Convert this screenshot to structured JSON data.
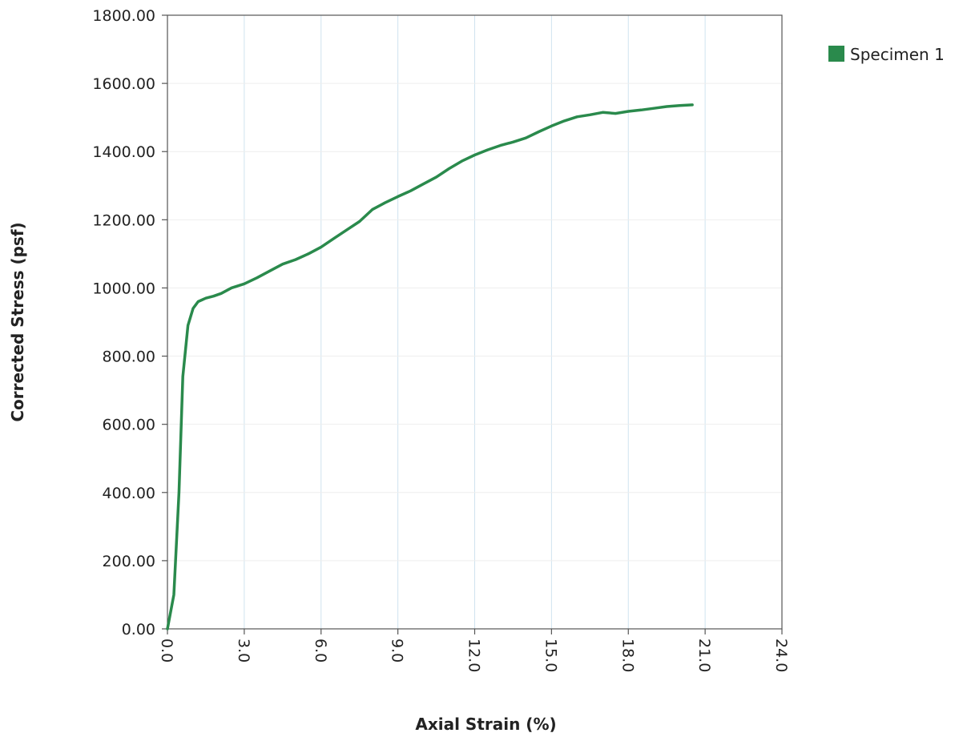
{
  "chart_data": {
    "type": "line",
    "title": "",
    "xlabel": "Axial Strain (%)",
    "ylabel": "Corrected Stress (psf)",
    "xlim": [
      0,
      24
    ],
    "ylim": [
      0,
      1800
    ],
    "xticks": [
      "0.0",
      "3.0",
      "6.0",
      "9.0",
      "12.0",
      "15.0",
      "18.0",
      "21.0",
      "24.0"
    ],
    "yticks": [
      "0.00",
      "200.00",
      "400.00",
      "600.00",
      "800.00",
      "1000.00",
      "1200.00",
      "1400.00",
      "1600.00",
      "1800.00"
    ],
    "grid": true,
    "legend_position": "top-right",
    "series": [
      {
        "name": "Specimen 1",
        "color": "#2a8a4c",
        "x": [
          0.0,
          0.25,
          0.45,
          0.6,
          0.8,
          1.0,
          1.2,
          1.5,
          1.8,
          2.1,
          2.5,
          3.0,
          3.5,
          4.0,
          4.5,
          5.0,
          5.5,
          6.0,
          6.5,
          7.0,
          7.5,
          8.0,
          8.5,
          9.0,
          9.5,
          10.0,
          10.5,
          11.0,
          11.5,
          12.0,
          12.5,
          13.0,
          13.5,
          14.0,
          14.5,
          15.0,
          15.5,
          16.0,
          16.5,
          17.0,
          17.5,
          18.0,
          18.5,
          19.0,
          19.5,
          20.0,
          20.5
        ],
        "y": [
          0,
          100,
          400,
          740,
          890,
          940,
          960,
          970,
          976,
          984,
          1000,
          1012,
          1030,
          1050,
          1070,
          1083,
          1100,
          1120,
          1145,
          1170,
          1195,
          1230,
          1250,
          1268,
          1285,
          1305,
          1325,
          1350,
          1372,
          1390,
          1405,
          1418,
          1428,
          1440,
          1458,
          1475,
          1490,
          1502,
          1508,
          1515,
          1512,
          1518,
          1522,
          1527,
          1532,
          1535,
          1537
        ]
      }
    ]
  }
}
